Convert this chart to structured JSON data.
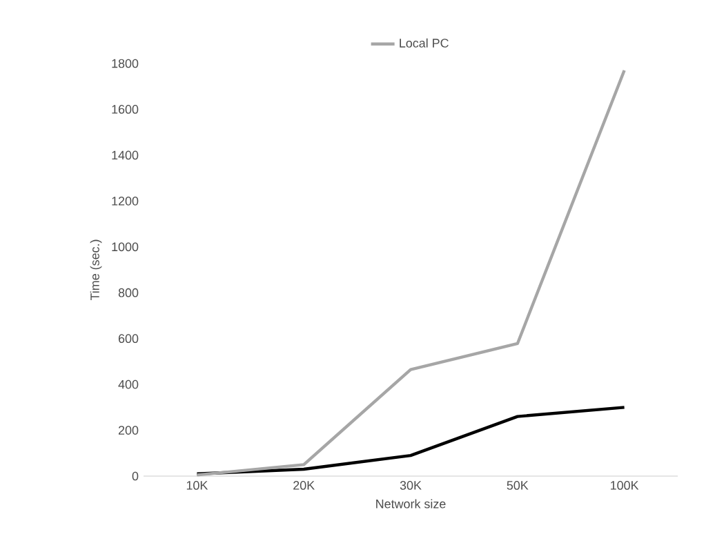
{
  "chart_data": {
    "type": "line",
    "xlabel": "Network size",
    "ylabel": "Time (sec.)",
    "categories": [
      "10K",
      "20K",
      "30K",
      "50K",
      "100K"
    ],
    "series": [
      {
        "color": "#000000",
        "values": [
          10,
          30,
          90,
          260,
          300
        ]
      },
      {
        "name": "Local PC",
        "color": "#a6a6a6",
        "values": [
          5,
          50,
          465,
          578,
          1770
        ]
      }
    ],
    "ylim": [
      0,
      1800
    ],
    "yticks": [
      0,
      200,
      400,
      600,
      800,
      1000,
      1200,
      1400,
      1600,
      1800
    ],
    "legend": "top",
    "grid": false,
    "marker": "none",
    "line_style": "solid"
  }
}
